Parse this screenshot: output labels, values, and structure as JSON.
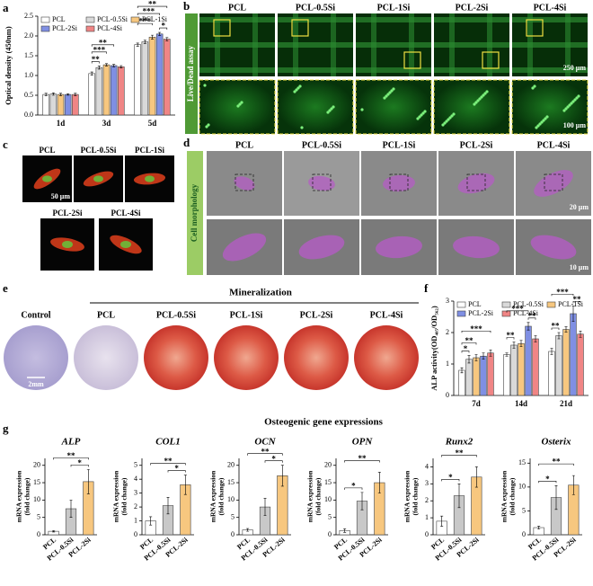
{
  "chart_data": [
    {
      "type": "bar",
      "ylabel": "Optical density (450nm)",
      "categories": [
        "1d",
        "3d",
        "5d"
      ],
      "series": [
        {
          "name": "PCL",
          "color": "#ffffff",
          "values": [
            0.52,
            1.05,
            1.78
          ],
          "errors": [
            0.03,
            0.04,
            0.04
          ]
        },
        {
          "name": "PCL-0.5Si",
          "color": "#d9d9d9",
          "values": [
            0.53,
            1.2,
            1.85
          ],
          "errors": [
            0.03,
            0.04,
            0.04
          ]
        },
        {
          "name": "PCL-1Si",
          "color": "#f7c77f",
          "values": [
            0.52,
            1.27,
            1.97
          ],
          "errors": [
            0.03,
            0.03,
            0.05
          ]
        },
        {
          "name": "PCL-2Si",
          "color": "#7f8fe3",
          "values": [
            0.52,
            1.25,
            2.05
          ],
          "errors": [
            0.02,
            0.03,
            0.04
          ]
        },
        {
          "name": "PCL-4Si",
          "color": "#f08585",
          "values": [
            0.52,
            1.22,
            1.92
          ],
          "errors": [
            0.03,
            0.03,
            0.04
          ]
        }
      ],
      "ylim": [
        0,
        2.5
      ],
      "yticks": [
        {
          "value": 0,
          "label": "0.0"
        },
        0.5,
        {
          "value": 1,
          "label": "1.0"
        },
        1.5,
        {
          "value": 2,
          "label": "2.0"
        },
        2.5
      ],
      "legend": "top-left",
      "annotations": [
        "**",
        "***",
        "**",
        "**",
        "***",
        "***",
        "*"
      ]
    },
    {
      "type": "bar",
      "ylabel": "ALP activity(OD₄₀₅/OD₅₆₂)",
      "categories": [
        "7d",
        "14d",
        "21d"
      ],
      "series": [
        {
          "name": "PCL",
          "color": "#ffffff",
          "values": [
            0.8,
            1.3,
            1.4
          ],
          "errors": [
            0.08,
            0.05,
            0.1
          ]
        },
        {
          "name": "PCL-0.5Si",
          "color": "#d9d9d9",
          "values": [
            1.15,
            1.6,
            1.9
          ],
          "errors": [
            0.12,
            0.1,
            0.1
          ]
        },
        {
          "name": "PCL-1Si",
          "color": "#f7c77f",
          "values": [
            1.2,
            1.65,
            2.1
          ],
          "errors": [
            0.1,
            0.1,
            0.08
          ]
        },
        {
          "name": "PCL-2Si",
          "color": "#7f8fe3",
          "values": [
            1.25,
            2.2,
            2.6
          ],
          "errors": [
            0.1,
            0.12,
            0.25
          ]
        },
        {
          "name": "PCL-4Si",
          "color": "#f08585",
          "values": [
            1.35,
            1.8,
            1.95
          ],
          "errors": [
            0.1,
            0.1,
            0.1
          ]
        }
      ],
      "ylim": [
        0,
        3
      ],
      "yticks": [
        0,
        1,
        2,
        3
      ],
      "legend": "top-left",
      "annotations": [
        "*",
        "**",
        "***",
        "**",
        "***",
        "**",
        "**",
        "***",
        "**"
      ]
    },
    {
      "type": "bar",
      "title": "ALP",
      "ylabel": [
        "mRNA expression",
        "(fold change)"
      ],
      "categories": [
        "PCL",
        "PCL-0.5Si",
        "PCL-2Si"
      ],
      "colors": [
        "#ffffff",
        "#c8c8c8",
        "#f7c77f"
      ],
      "values": [
        1,
        7.5,
        15.3
      ],
      "errors": [
        0.2,
        2.5,
        3.5
      ],
      "ylim": [
        0,
        22
      ],
      "yticks": [
        0,
        5,
        10,
        15,
        20
      ],
      "annotations": [
        "**",
        "*"
      ]
    },
    {
      "type": "bar",
      "title": "COL1",
      "ylabel": [
        "mRNA expression",
        "(fold change)"
      ],
      "categories": [
        "PCL",
        "PCL-0.5Si",
        "PCL-2Si"
      ],
      "colors": [
        "#ffffff",
        "#c8c8c8",
        "#f7c77f"
      ],
      "values": [
        1,
        2.1,
        3.6
      ],
      "errors": [
        0.3,
        0.6,
        0.7
      ],
      "ylim": [
        0,
        5.5
      ],
      "yticks": [
        0,
        1,
        2,
        3,
        4,
        5
      ],
      "annotations": [
        "**",
        "*"
      ]
    },
    {
      "type": "bar",
      "title": "OCN",
      "ylabel": [
        "mRNA expression",
        "(fold change)"
      ],
      "categories": [
        "PCL",
        "PCL-0.5Si",
        "PCL-2Si"
      ],
      "colors": [
        "#ffffff",
        "#c8c8c8",
        "#f7c77f"
      ],
      "values": [
        1.4,
        8,
        17
      ],
      "errors": [
        0.4,
        2.5,
        3
      ],
      "ylim": [
        0,
        22
      ],
      "yticks": [
        0,
        5,
        10,
        15,
        20
      ],
      "annotations": [
        "**",
        "*"
      ]
    },
    {
      "type": "bar",
      "title": "OPN",
      "ylabel": [
        "mRNA expression",
        "(fold change)"
      ],
      "categories": [
        "PCL",
        "PCL-0.5Si",
        "PCL-2Si"
      ],
      "colors": [
        "#ffffff",
        "#c8c8c8",
        "#f7c77f"
      ],
      "values": [
        1.2,
        9.7,
        15
      ],
      "errors": [
        0.5,
        2.5,
        3
      ],
      "ylim": [
        0,
        22
      ],
      "yticks": [
        0,
        5,
        10,
        15,
        20
      ],
      "annotations": [
        "*",
        "**"
      ]
    },
    {
      "type": "bar",
      "title": "Runx2",
      "ylabel": [
        "mRNA expression",
        "(fold change)"
      ],
      "categories": [
        "PCL",
        "PCL-0.5Si",
        "PCL-2Si"
      ],
      "colors": [
        "#ffffff",
        "#c8c8c8",
        "#f7c77f"
      ],
      "values": [
        0.8,
        2.3,
        3.4
      ],
      "errors": [
        0.3,
        0.7,
        0.6
      ],
      "ylim": [
        0,
        4.5
      ],
      "yticks": [
        0,
        1,
        2,
        3,
        4
      ],
      "annotations": [
        "*",
        "**"
      ]
    },
    {
      "type": "bar",
      "title": "Osterix",
      "ylabel": [
        "mRNA expression",
        "(fold change)"
      ],
      "categories": [
        "PCL",
        "PCL-0.5Si",
        "PCL-2Si"
      ],
      "colors": [
        "#ffffff",
        "#c8c8c8",
        "#f7c77f"
      ],
      "values": [
        1.5,
        7.8,
        10.4
      ],
      "errors": [
        0.3,
        2.5,
        2
      ],
      "ylim": [
        0,
        16
      ],
      "yticks": [
        0,
        5,
        10,
        15
      ],
      "annotations": [
        "*",
        "**"
      ]
    }
  ],
  "panel_letters": [
    "a",
    "b",
    "c",
    "d",
    "e",
    "f",
    "g"
  ],
  "live_dead": {
    "columns": [
      "PCL",
      "PCL-0.5Si",
      "PCL-1Si",
      "PCL-2Si",
      "PCL-4Si"
    ],
    "row_label": "Live/Dead assay",
    "scale_bars": [
      "250 μm",
      "100 μm"
    ]
  },
  "cell_spreading": {
    "labels": [
      "PCL",
      "PCL-0.5Si",
      "PCL-1Si",
      "PCL-2Si",
      "PCL-4Si"
    ],
    "scale_bar": "50 μm"
  },
  "cell_morphology": {
    "columns": [
      "PCL",
      "PCL-0.5Si",
      "PCL-1Si",
      "PCL-2Si",
      "PCL-4Si"
    ],
    "row_label": "Cell morphology",
    "scale_bars": [
      "20 μm",
      "10 μm"
    ]
  },
  "mineralization": {
    "title": "Mineralization",
    "labels": [
      "Control",
      "PCL",
      "PCL-0.5Si",
      "PCL-1Si",
      "PCL-2Si",
      "PCL-4Si"
    ],
    "scale_bar": "2mm"
  },
  "gene_header": "Osteogenic gene expressions"
}
